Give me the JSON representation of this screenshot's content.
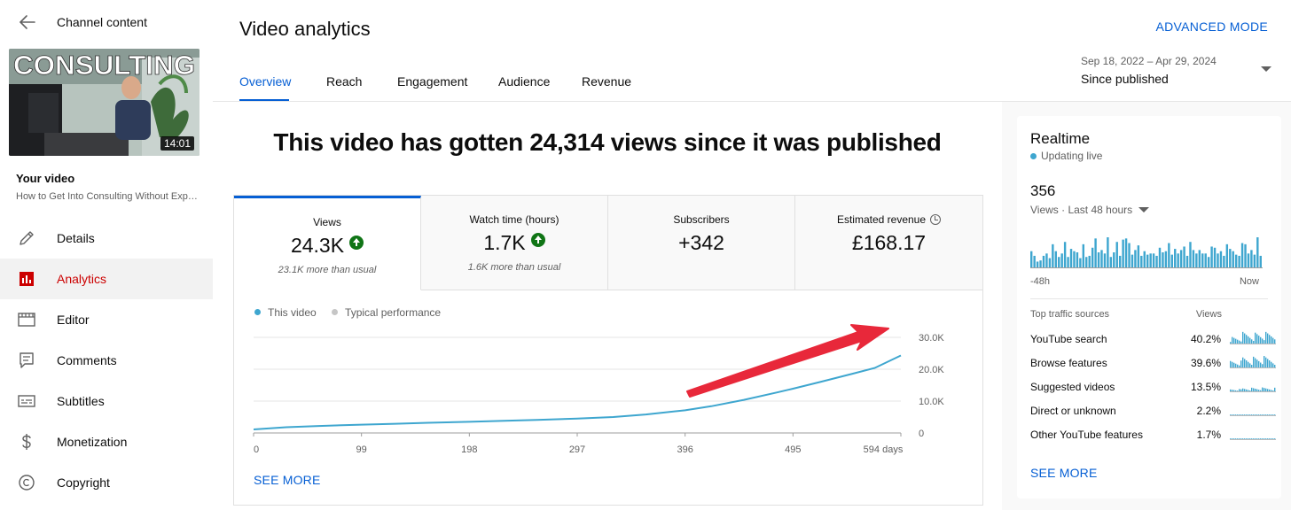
{
  "sidebar": {
    "header_title": "Channel content",
    "thumbnail": {
      "overlay_text": "CONSULTING",
      "duration": "14:01"
    },
    "your_video_label": "Your video",
    "video_title": "How to Get Into Consulting Without Experience",
    "items": [
      {
        "label": "Details",
        "icon": "pencil-icon"
      },
      {
        "label": "Analytics",
        "icon": "analytics-icon",
        "active": true
      },
      {
        "label": "Editor",
        "icon": "film-icon"
      },
      {
        "label": "Comments",
        "icon": "comment-icon"
      },
      {
        "label": "Subtitles",
        "icon": "subtitles-icon"
      },
      {
        "label": "Monetization",
        "icon": "dollar-icon"
      },
      {
        "label": "Copyright",
        "icon": "copyright-icon"
      }
    ]
  },
  "header": {
    "title": "Video analytics",
    "advanced_mode": "ADVANCED MODE",
    "tabs": [
      "Overview",
      "Reach",
      "Engagement",
      "Audience",
      "Revenue"
    ],
    "date_range": "Sep 18, 2022 – Apr 29, 2024",
    "date_label": "Since published"
  },
  "overview": {
    "headline": "This video has gotten 24,314 views since it was published",
    "metrics": [
      {
        "label": "Views",
        "value": "24.3K",
        "sub": "23.1K more than usual",
        "trend": "up"
      },
      {
        "label": "Watch time (hours)",
        "value": "1.7K",
        "sub": "1.6K more than usual",
        "trend": "up"
      },
      {
        "label": "Subscribers",
        "value": "+342",
        "sub": ""
      },
      {
        "label": "Estimated revenue",
        "value": "£168.17",
        "sub": ""
      }
    ],
    "legend": {
      "this_video": "This video",
      "typical": "Typical performance"
    },
    "see_more": "SEE MORE"
  },
  "chart_data": {
    "type": "line",
    "x": [
      0,
      30,
      60,
      99,
      130,
      160,
      198,
      230,
      260,
      297,
      330,
      360,
      396,
      420,
      450,
      480,
      495,
      520,
      550,
      570,
      594
    ],
    "series": [
      {
        "name": "This video",
        "color": "#3ea6cf",
        "values": [
          1100,
          1800,
          2200,
          2600,
          2900,
          3200,
          3500,
          3800,
          4100,
          4500,
          5000,
          5800,
          7100,
          8400,
          10400,
          12700,
          13900,
          16000,
          18600,
          20400,
          24300
        ]
      }
    ],
    "x_tick_labels": [
      "0",
      "99",
      "198",
      "297",
      "396",
      "495",
      "594 days"
    ],
    "x_ticks": [
      0,
      99,
      198,
      297,
      396,
      495,
      594
    ],
    "y_tick_labels": [
      "0",
      "10.0K",
      "20.0K",
      "30.0K"
    ],
    "y_ticks": [
      0,
      10000,
      20000,
      30000
    ],
    "ylim": [
      0,
      30000
    ],
    "xlim": [
      0,
      594
    ],
    "annotation": "red-arrow",
    "grid": true
  },
  "realtime": {
    "title": "Realtime",
    "status": "Updating live",
    "count": "356",
    "period": "Views · Last 48 hours",
    "bars": [
      14,
      10,
      5,
      6,
      10,
      12,
      8,
      20,
      14,
      9,
      12,
      22,
      9,
      16,
      14,
      13,
      8,
      20,
      9,
      10,
      17,
      25,
      13,
      15,
      12,
      26,
      9,
      13,
      22,
      10,
      24,
      25,
      21,
      11,
      15,
      19,
      10,
      14,
      11,
      12,
      12,
      10,
      17,
      13,
      14,
      21,
      11,
      16,
      12,
      15,
      18,
      10,
      22,
      15,
      12,
      15,
      12,
      12,
      9,
      18,
      17,
      12,
      14,
      10,
      20,
      16,
      14,
      11,
      10,
      21,
      20,
      12,
      15,
      11,
      26,
      10
    ],
    "axis_left": "-48h",
    "axis_right": "Now",
    "traffic_head": "Top traffic sources",
    "traffic_col": "Views",
    "traffic": [
      {
        "name": "YouTube search",
        "pct": "40.2%"
      },
      {
        "name": "Browse features",
        "pct": "39.6%"
      },
      {
        "name": "Suggested videos",
        "pct": "13.5%"
      },
      {
        "name": "Direct or unknown",
        "pct": "2.2%"
      },
      {
        "name": "Other YouTube features",
        "pct": "1.7%"
      }
    ],
    "see_more": "SEE MORE"
  },
  "colors": {
    "accent": "#065fd4",
    "analytics_red": "#cc0000",
    "chart_line": "#3ea6cf",
    "trend_up": "#107516",
    "arrow": "#e8283a"
  }
}
